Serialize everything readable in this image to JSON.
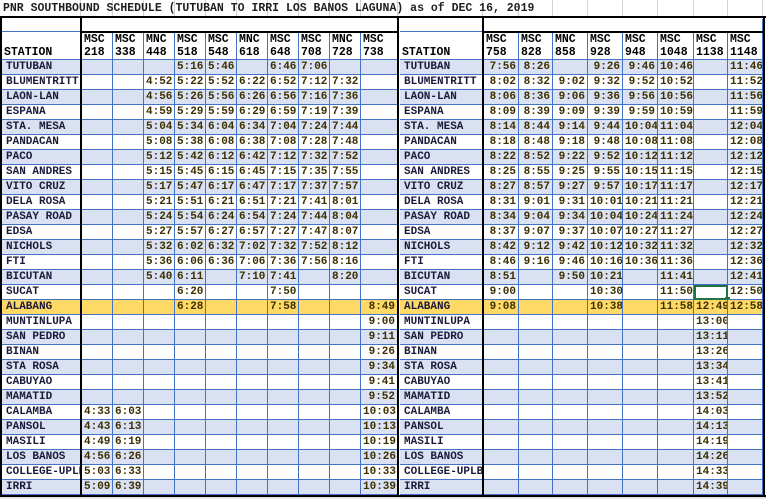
{
  "title": "PNR SOUTHBOUND SCHEDULE (TUTUBAN TO IRRI LOS BANOS LAGUNA) as of DEC 16, 2019",
  "station_header": "STATION",
  "colors": {
    "grid": "#4472c4",
    "shade": "#dae1f2",
    "highlight": "#ffd966",
    "selection": "#217346"
  },
  "left_trains": [
    [
      "MSC",
      "218"
    ],
    [
      "MSC",
      "338"
    ],
    [
      "MNC",
      "448"
    ],
    [
      "MSC",
      "518"
    ],
    [
      "MSC",
      "548"
    ],
    [
      "MNC",
      "618"
    ],
    [
      "MSC",
      "648"
    ],
    [
      "MSC",
      "708"
    ],
    [
      "MNC",
      "728"
    ],
    [
      "MSC",
      "738"
    ]
  ],
  "right_trains": [
    [
      "MSC",
      "758"
    ],
    [
      "MSC",
      "828"
    ],
    [
      "MNC",
      "858"
    ],
    [
      "MSC",
      "928"
    ],
    [
      "MSC",
      "948"
    ],
    [
      "MSC",
      "1048"
    ],
    [
      "MSC",
      "1138"
    ],
    [
      "MSC",
      "1148"
    ]
  ],
  "highlight_station": "ALABANG",
  "selected_cell": {
    "station": "SUCAT",
    "train": "MSC 1138"
  },
  "rows": [
    {
      "station": "TUTUBAN",
      "left": [
        "",
        "",
        "",
        "5:16",
        "5:46",
        "",
        "6:46",
        "7:06",
        "",
        ""
      ],
      "right": [
        "7:56",
        "8:26",
        "",
        "9:26",
        "9:46",
        "10:46",
        "",
        "11:46"
      ]
    },
    {
      "station": "BLUMENTRITT",
      "left": [
        "",
        "",
        "4:52",
        "5:22",
        "5:52",
        "6:22",
        "6:52",
        "7:12",
        "7:32",
        ""
      ],
      "right": [
        "8:02",
        "8:32",
        "9:02",
        "9:32",
        "9:52",
        "10:52",
        "",
        "11:52"
      ]
    },
    {
      "station": "LAON-LAN",
      "left": [
        "",
        "",
        "4:56",
        "5:26",
        "5:56",
        "6:26",
        "6:56",
        "7:16",
        "7:36",
        ""
      ],
      "right": [
        "8:06",
        "8:36",
        "9:06",
        "9:36",
        "9:56",
        "10:56",
        "",
        "11:56"
      ]
    },
    {
      "station": "ESPANA",
      "left": [
        "",
        "",
        "4:59",
        "5:29",
        "5:59",
        "6:29",
        "6:59",
        "7:19",
        "7:39",
        ""
      ],
      "right": [
        "8:09",
        "8:39",
        "9:09",
        "9:39",
        "9:59",
        "10:59",
        "",
        "11:59"
      ]
    },
    {
      "station": "STA. MESA",
      "left": [
        "",
        "",
        "5:04",
        "5:34",
        "6:04",
        "6:34",
        "7:04",
        "7:24",
        "7:44",
        ""
      ],
      "right": [
        "8:14",
        "8:44",
        "9:14",
        "9:44",
        "10:04",
        "11:04",
        "",
        "12:04"
      ]
    },
    {
      "station": "PANDACAN",
      "left": [
        "",
        "",
        "5:08",
        "5:38",
        "6:08",
        "6:38",
        "7:08",
        "7:28",
        "7:48",
        ""
      ],
      "right": [
        "8:18",
        "8:48",
        "9:18",
        "9:48",
        "10:08",
        "11:08",
        "",
        "12:08"
      ]
    },
    {
      "station": "PACO",
      "left": [
        "",
        "",
        "5:12",
        "5:42",
        "6:12",
        "6:42",
        "7:12",
        "7:32",
        "7:52",
        ""
      ],
      "right": [
        "8:22",
        "8:52",
        "9:22",
        "9:52",
        "10:12",
        "11:12",
        "",
        "12:12"
      ]
    },
    {
      "station": "SAN ANDRES",
      "left": [
        "",
        "",
        "5:15",
        "5:45",
        "6:15",
        "6:45",
        "7:15",
        "7:35",
        "7:55",
        ""
      ],
      "right": [
        "8:25",
        "8:55",
        "9:25",
        "9:55",
        "10:15",
        "11:15",
        "",
        "12:15"
      ]
    },
    {
      "station": "VITO CRUZ",
      "left": [
        "",
        "",
        "5:17",
        "5:47",
        "6:17",
        "6:47",
        "7:17",
        "7:37",
        "7:57",
        ""
      ],
      "right": [
        "8:27",
        "8:57",
        "9:27",
        "9:57",
        "10:17",
        "11:17",
        "",
        "12:17"
      ]
    },
    {
      "station": "DELA ROSA",
      "left": [
        "",
        "",
        "5:21",
        "5:51",
        "6:21",
        "6:51",
        "7:21",
        "7:41",
        "8:01",
        ""
      ],
      "right": [
        "8:31",
        "9:01",
        "9:31",
        "10:01",
        "10:21",
        "11:21",
        "",
        "12:21"
      ]
    },
    {
      "station": "PASAY ROAD",
      "left": [
        "",
        "",
        "5:24",
        "5:54",
        "6:24",
        "6:54",
        "7:24",
        "7:44",
        "8:04",
        ""
      ],
      "right": [
        "8:34",
        "9:04",
        "9:34",
        "10:04",
        "10:24",
        "11:24",
        "",
        "12:24"
      ]
    },
    {
      "station": "EDSA",
      "left": [
        "",
        "",
        "5:27",
        "5:57",
        "6:27",
        "6:57",
        "7:27",
        "7:47",
        "8:07",
        ""
      ],
      "right": [
        "8:37",
        "9:07",
        "9:37",
        "10:07",
        "10:27",
        "11:27",
        "",
        "12:27"
      ]
    },
    {
      "station": "NICHOLS",
      "left": [
        "",
        "",
        "5:32",
        "6:02",
        "6:32",
        "7:02",
        "7:32",
        "7:52",
        "8:12",
        ""
      ],
      "right": [
        "8:42",
        "9:12",
        "9:42",
        "10:12",
        "10:32",
        "11:32",
        "",
        "12:32"
      ]
    },
    {
      "station": "FTI",
      "left": [
        "",
        "",
        "5:36",
        "6:06",
        "6:36",
        "7:06",
        "7:36",
        "7:56",
        "8:16",
        ""
      ],
      "right": [
        "8:46",
        "9:16",
        "9:46",
        "10:16",
        "10:36",
        "11:36",
        "",
        "12:36"
      ]
    },
    {
      "station": "BICUTAN",
      "left": [
        "",
        "",
        "5:40",
        "6:11",
        "",
        "7:10",
        "7:41",
        "",
        "8:20",
        ""
      ],
      "right": [
        "8:51",
        "",
        "9:50",
        "10:21",
        "",
        "11:41",
        "",
        "12:41"
      ]
    },
    {
      "station": "SUCAT",
      "left": [
        "",
        "",
        "",
        "6:20",
        "",
        "",
        "7:50",
        "",
        "",
        ""
      ],
      "right": [
        "9:00",
        "",
        "",
        "10:30",
        "",
        "11:50",
        "",
        "12:50"
      ]
    },
    {
      "station": "ALABANG",
      "left": [
        "",
        "",
        "",
        "6:28",
        "",
        "",
        "7:58",
        "",
        "",
        "8:49"
      ],
      "right": [
        "9:08",
        "",
        "",
        "10:38",
        "",
        "11:58",
        "12:49",
        "12:58"
      ]
    },
    {
      "station": "MUNTINLUPA",
      "left": [
        "",
        "",
        "",
        "",
        "",
        "",
        "",
        "",
        "",
        "9:00"
      ],
      "right": [
        "",
        "",
        "",
        "",
        "",
        "",
        "13:00",
        ""
      ]
    },
    {
      "station": "SAN PEDRO",
      "left": [
        "",
        "",
        "",
        "",
        "",
        "",
        "",
        "",
        "",
        "9:11"
      ],
      "right": [
        "",
        "",
        "",
        "",
        "",
        "",
        "13:11",
        ""
      ]
    },
    {
      "station": "BINAN",
      "left": [
        "",
        "",
        "",
        "",
        "",
        "",
        "",
        "",
        "",
        "9:26"
      ],
      "right": [
        "",
        "",
        "",
        "",
        "",
        "",
        "13:26",
        ""
      ]
    },
    {
      "station": "STA ROSA",
      "left": [
        "",
        "",
        "",
        "",
        "",
        "",
        "",
        "",
        "",
        "9:34"
      ],
      "right": [
        "",
        "",
        "",
        "",
        "",
        "",
        "13:34",
        ""
      ]
    },
    {
      "station": "CABUYAO",
      "left": [
        "",
        "",
        "",
        "",
        "",
        "",
        "",
        "",
        "",
        "9:41"
      ],
      "right": [
        "",
        "",
        "",
        "",
        "",
        "",
        "13:41",
        ""
      ]
    },
    {
      "station": "MAMATID",
      "left": [
        "",
        "",
        "",
        "",
        "",
        "",
        "",
        "",
        "",
        "9:52"
      ],
      "right": [
        "",
        "",
        "",
        "",
        "",
        "",
        "13:52",
        ""
      ]
    },
    {
      "station": "CALAMBA",
      "left": [
        "4:33",
        "6:03",
        "",
        "",
        "",
        "",
        "",
        "",
        "",
        "10:03"
      ],
      "right": [
        "",
        "",
        "",
        "",
        "",
        "",
        "14:03",
        ""
      ]
    },
    {
      "station": "PANSOL",
      "left": [
        "4:43",
        "6:13",
        "",
        "",
        "",
        "",
        "",
        "",
        "",
        "10:13"
      ],
      "right": [
        "",
        "",
        "",
        "",
        "",
        "",
        "14:13",
        ""
      ]
    },
    {
      "station": "MASILI",
      "left": [
        "4:49",
        "6:19",
        "",
        "",
        "",
        "",
        "",
        "",
        "",
        "10:19"
      ],
      "right": [
        "",
        "",
        "",
        "",
        "",
        "",
        "14:19",
        ""
      ]
    },
    {
      "station": "LOS BANOS",
      "left": [
        "4:56",
        "6:26",
        "",
        "",
        "",
        "",
        "",
        "",
        "",
        "10:26"
      ],
      "right": [
        "",
        "",
        "",
        "",
        "",
        "",
        "14:26",
        ""
      ]
    },
    {
      "station": "COLLEGE-UPLB",
      "left": [
        "5:03",
        "6:33",
        "",
        "",
        "",
        "",
        "",
        "",
        "",
        "10:33"
      ],
      "right": [
        "",
        "",
        "",
        "",
        "",
        "",
        "14:33",
        ""
      ]
    },
    {
      "station": "IRRI",
      "left": [
        "5:09",
        "6:39",
        "",
        "",
        "",
        "",
        "",
        "",
        "",
        "10:39"
      ],
      "right": [
        "",
        "",
        "",
        "",
        "",
        "",
        "14:39",
        ""
      ]
    }
  ]
}
